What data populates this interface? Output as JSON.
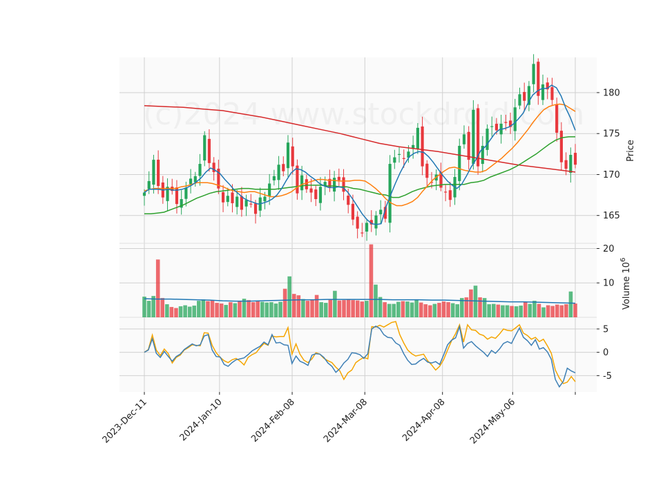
{
  "watermark": "(c)2024 www.stockdroid.com",
  "colors": {
    "up": "#26a65b",
    "down": "#e8383d",
    "ma_fast": "#1f77b4",
    "ma_mid": "#ff7f0e",
    "ma_slow": "#2ca02c",
    "ma_long": "#d62728",
    "osc_a": "#3d7fb5",
    "osc_b": "#f5a500",
    "vol_avg": "#1f77b4"
  },
  "chart_data": [
    {
      "type": "candlestick",
      "ylabel": "Price",
      "ylim": [
        161.6,
        184.3
      ],
      "yticks": [
        165,
        170,
        175,
        180
      ],
      "grid": true,
      "x_start": "2023-12-11",
      "x_end": "2024-05-31",
      "xticks": [
        "2023-Dec-11",
        "2024-Jan-10",
        "2024-Feb-08",
        "2024-Mar-08",
        "2024-Apr-08",
        "2024-May-06"
      ],
      "closes": [
        167.8,
        169.2,
        171.8,
        168.6,
        167.2,
        168.5,
        168.0,
        166.4,
        167.0,
        168.4,
        169.5,
        169.8,
        171.3,
        174.8,
        171.4,
        170.3,
        168.3,
        166.6,
        167.4,
        166.5,
        167.3,
        165.7,
        166.9,
        166.4,
        165.2,
        167.2,
        167.3,
        168.9,
        169.8,
        171.2,
        170.4,
        173.9,
        171.0,
        167.7,
        169.9,
        168.2,
        167.8,
        167.0,
        168.5,
        169.1,
        168.4,
        169.6,
        169.3,
        167.9,
        166.3,
        164.5,
        163.4,
        162.9,
        164.1,
        163.9,
        165.0,
        165.7,
        164.6,
        171.3,
        172.1,
        172.5,
        171.9,
        172.8,
        173.6,
        175.7,
        171.0,
        169.6,
        169.1,
        170.0,
        168.4,
        167.9,
        166.9,
        169.7,
        173.5,
        174.9,
        171.8,
        177.9,
        171.0,
        173.5,
        175.6,
        175.9,
        175.4,
        176.2,
        176.3,
        175.8,
        178.2,
        179.8,
        179.0,
        180.8,
        183.5,
        179.6,
        181.0,
        180.4,
        179.1,
        175.1,
        171.5,
        170.7,
        172.4,
        171.2
      ],
      "ma_fast": [
        167.8,
        168.2,
        168.2,
        168.2,
        168.1,
        168.2,
        168.1,
        168.1,
        168.2,
        168.4,
        168.7,
        169.1,
        169.6,
        170.3,
        170.8,
        170.5,
        170.1,
        169.4,
        168.8,
        168.1,
        167.6,
        167.1,
        166.8,
        166.6,
        166.4,
        166.5,
        166.7,
        167.0,
        167.5,
        168.3,
        169.3,
        170.2,
        170.7,
        170.6,
        170.3,
        169.8,
        169.4,
        168.9,
        168.6,
        168.4,
        168.4,
        168.5,
        168.4,
        167.8,
        167.0,
        166.1,
        165.2,
        164.5,
        164.0,
        163.9,
        164.0,
        166.0,
        167.5,
        168.9,
        170.2,
        171.3,
        172.2,
        172.6,
        172.8,
        172.7,
        172.2,
        171.5,
        170.7,
        169.9,
        169.2,
        168.7,
        168.3,
        168.8,
        169.8,
        170.9,
        171.8,
        172.9,
        173.4,
        174.2,
        175.0,
        175.5,
        175.6,
        175.8,
        176.2,
        176.8,
        177.5,
        178.7,
        179.7,
        180.2,
        180.5,
        180.5,
        180.9,
        180.6,
        179.6,
        178.1,
        176.9,
        175.4
      ],
      "ma_mid": [
        168.0,
        168.2,
        168.3,
        168.3,
        168.3,
        168.3,
        168.3,
        168.5,
        168.6,
        168.8,
        169.0,
        169.0,
        169.0,
        168.9,
        168.7,
        168.5,
        168.2,
        168.0,
        167.9,
        167.8,
        167.9,
        167.9,
        167.7,
        167.5,
        167.3,
        167.3,
        167.4,
        167.6,
        167.9,
        168.4,
        168.8,
        169.0,
        169.2,
        169.4,
        169.4,
        169.3,
        169.3,
        169.2,
        169.2,
        169.2,
        169.3,
        169.3,
        169.2,
        168.8,
        168.3,
        167.7,
        167.0,
        166.5,
        166.2,
        166.2,
        166.4,
        166.7,
        167.2,
        168.0,
        168.7,
        169.4,
        169.9,
        170.4,
        170.8,
        170.9,
        170.7,
        170.5,
        170.4,
        170.3,
        170.3,
        170.5,
        171.0,
        171.5,
        172.0,
        172.6,
        173.2,
        173.9,
        174.7,
        175.5,
        176.4,
        177.2,
        177.9,
        178.3,
        178.5,
        178.6,
        178.5,
        178.1,
        177.7
      ],
      "ma_slow": [
        165.2,
        165.2,
        165.3,
        165.4,
        165.7,
        166.0,
        166.3,
        166.7,
        167.1,
        167.4,
        167.7,
        167.9,
        168.0,
        168.1,
        168.2,
        168.3,
        168.3,
        168.2,
        168.2,
        168.2,
        168.2,
        168.3,
        168.4,
        168.5,
        168.6,
        168.7,
        168.7,
        168.7,
        168.6,
        168.6,
        168.5,
        168.5,
        168.3,
        168.2,
        168.0,
        167.8,
        167.6,
        167.5,
        167.2,
        167.2,
        167.5,
        167.9,
        168.2,
        168.4,
        168.6,
        168.7,
        168.8,
        168.8,
        168.8,
        168.8,
        169.0,
        169.1,
        169.3,
        169.7,
        170.0,
        170.3,
        170.6,
        171.0,
        171.5,
        172.0,
        172.5,
        173.1,
        173.7,
        174.2,
        174.5,
        174.6,
        174.6
      ],
      "ma_long": [
        178.4,
        178.3,
        178.2,
        178.0,
        177.8,
        177.4,
        177.0,
        176.5,
        176.0,
        175.5,
        175.0,
        174.4,
        173.8,
        173.4,
        173.1,
        172.8,
        172.4,
        172.0,
        171.6,
        171.2,
        170.9,
        170.6,
        170.3
      ]
    },
    {
      "type": "bar",
      "ylabel": "Volume  10",
      "ylabel_exponent": "6",
      "ylim": [
        0,
        21.5
      ],
      "yticks": [
        10,
        20
      ],
      "grid": true,
      "values": [
        6.0,
        4.8,
        6.2,
        16.8,
        5.6,
        3.8,
        3.0,
        2.7,
        3.2,
        3.5,
        3.1,
        3.4,
        4.8,
        5.2,
        4.7,
        5.0,
        4.2,
        4.0,
        3.6,
        4.4,
        4.1,
        4.8,
        5.4,
        5.0,
        4.4,
        4.8,
        4.5,
        4.3,
        4.4,
        4.0,
        4.5,
        8.3,
        11.9,
        6.8,
        6.4,
        5.3,
        4.8,
        5.1,
        6.5,
        4.4,
        4.2,
        5.1,
        7.7,
        4.9,
        5.0,
        5.2,
        5.0,
        4.9,
        4.6,
        4.8,
        21.2,
        9.5,
        5.9,
        4.4,
        3.9,
        3.9,
        4.5,
        4.7,
        4.6,
        4.3,
        5.1,
        4.3,
        3.8,
        3.5,
        3.9,
        4.2,
        4.6,
        4.4,
        4.1,
        3.8,
        5.6,
        5.8,
        8.1,
        9.2,
        5.8,
        5.6,
        3.8,
        3.9,
        3.7,
        3.5,
        3.5,
        3.3,
        3.2,
        3.4,
        4.5,
        3.9,
        4.8,
        3.9,
        2.9,
        3.5,
        3.3,
        3.7,
        3.5,
        3.8,
        7.5,
        4.0
      ],
      "avg": [
        5.4,
        5.3,
        5.3,
        5.2,
        5.1,
        5.0,
        4.8,
        4.7,
        4.7,
        4.8,
        4.9,
        5.0,
        5.1,
        5.1,
        5.2,
        5.2,
        5.2,
        5.2,
        5.2,
        5.1,
        5.1,
        5.1,
        5.0,
        5.0,
        4.9,
        4.8,
        4.7,
        4.6,
        4.5,
        4.5,
        4.4,
        4.3,
        4.2,
        4.1
      ]
    },
    {
      "type": "line",
      "ylim": [
        -8.5,
        7.5
      ],
      "yticks": [
        -5,
        0,
        5
      ],
      "grid": true,
      "series": [
        {
          "values": [
            0.0,
            0.5,
            2.9,
            -0.2,
            -1.1,
            0.2,
            -0.9,
            -1.9,
            -0.9,
            -0.4,
            0.6,
            1.2,
            1.8,
            1.4,
            1.6,
            3.5,
            3.8,
            0.5,
            -0.9,
            -1.0,
            -2.6,
            -3.0,
            -2.2,
            -1.6,
            -1.4,
            -1.2,
            -0.5,
            0.3,
            0.8,
            1.3,
            2.2,
            1.6,
            3.8,
            2.0,
            2.1,
            1.6,
            1.5,
            -2.4,
            -0.8,
            -1.9,
            -2.3,
            -2.8,
            -0.6,
            -0.3,
            -0.4,
            -1.1,
            -2.3,
            -3.0,
            -4.3,
            -3.5,
            -2.3,
            -1.5,
            -0.1,
            -0.2,
            -0.5,
            -1.3,
            -0.3,
            5.0,
            5.6,
            5.1,
            3.8,
            3.2,
            3.1,
            2.0,
            1.5,
            -0.3,
            -1.7,
            -2.6,
            -2.5,
            -1.8,
            -1.3,
            -2.1,
            -2.3,
            -2.0,
            -2.6,
            -0.6,
            1.6,
            2.6,
            3.1,
            5.5,
            0.9,
            1.9,
            2.3,
            1.4,
            0.7,
            0.0,
            -0.9,
            0.4,
            -0.2,
            0.7,
            1.9,
            2.3,
            1.9,
            3.6,
            5.2,
            3.2,
            2.5,
            1.5,
            2.7,
            0.7,
            1.0,
            0.1,
            -1.5,
            -5.8,
            -7.4,
            -6.2,
            -3.4,
            -4.0,
            -4.4
          ]
        },
        {
          "values": [
            0.0,
            0.6,
            3.7,
            0.5,
            -0.7,
            0.7,
            -0.3,
            -2.3,
            -1.1,
            -0.6,
            0.5,
            1.0,
            1.6,
            1.5,
            1.4,
            4.2,
            4.1,
            1.5,
            -0.1,
            -1.1,
            -1.8,
            -2.2,
            -1.6,
            -1.3,
            -1.9,
            -2.7,
            -1.1,
            -0.5,
            -0.1,
            1.0,
            1.9,
            1.5,
            3.5,
            3.3,
            3.4,
            3.4,
            5.3,
            -0.4,
            1.8,
            -0.4,
            -1.7,
            -2.2,
            -1.4,
            -0.1,
            -0.4,
            -1.3,
            -1.8,
            -2.2,
            -3.2,
            -4.0,
            -5.8,
            -4.4,
            -3.8,
            -2.2,
            -1.6,
            -1.1,
            -1.4,
            5.5,
            5.4,
            5.8,
            5.4,
            5.9,
            6.4,
            6.6,
            3.8,
            2.0,
            0.5,
            -0.3,
            -0.8,
            -0.6,
            -0.4,
            -1.8,
            -2.7,
            -3.8,
            -3.0,
            -1.6,
            0.5,
            2.5,
            4.0,
            5.9,
            2.2,
            5.9,
            4.8,
            4.7,
            3.9,
            3.6,
            2.8,
            3.3,
            3.0,
            3.9,
            5.0,
            4.7,
            4.6,
            5.2,
            5.9,
            4.1,
            3.6,
            2.8,
            3.2,
            2.3,
            2.8,
            1.4,
            -0.2,
            -3.8,
            -5.5,
            -6.7,
            -6.4,
            -5.2,
            -6.3
          ]
        }
      ]
    }
  ]
}
